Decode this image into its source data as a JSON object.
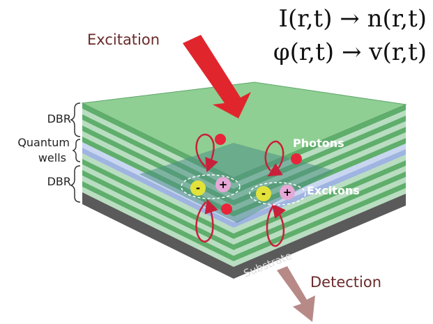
{
  "equations": [
    "I(r,t) → n(r,t)",
    "φ(r,t) → v(r,t)"
  ],
  "labels": {
    "excitation": "Excitation",
    "dbr_top": "DBR",
    "quantum_wells": [
      "Quantum",
      "wells"
    ],
    "dbr_bottom": "DBR",
    "photons": "Photons",
    "excitons": "Excitons",
    "substrate": "Substrate",
    "detection": "Detection"
  },
  "charges": [
    "-",
    "+",
    "-",
    "+"
  ]
}
